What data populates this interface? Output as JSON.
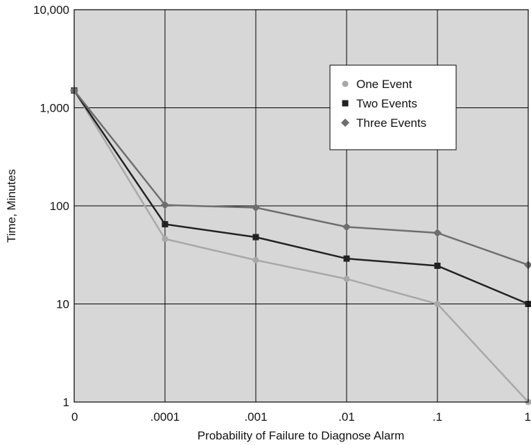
{
  "chart_data": {
    "type": "line",
    "title": "",
    "xlabel": "Probability of Failure to Diagnose Alarm",
    "ylabel": "Time, Minutes",
    "x_scale": "categorical",
    "y_scale": "log",
    "ylim": [
      1,
      10000
    ],
    "categories": [
      "0",
      ".0001",
      ".001",
      ".01",
      ".1",
      "1"
    ],
    "y_ticks": [
      1,
      10,
      100,
      1000,
      10000
    ],
    "y_tick_labels": [
      "1",
      "10",
      "100",
      "1,000",
      "10,000"
    ],
    "grid": true,
    "legend_position": "top-right",
    "series": [
      {
        "name": "One Event",
        "marker": "circle",
        "color": "#a8a8a8",
        "values": [
          1500,
          46,
          28,
          18,
          10,
          1
        ]
      },
      {
        "name": "Two Events",
        "marker": "square",
        "color": "#222222",
        "values": [
          1500,
          65,
          48,
          29,
          24.5,
          10
        ]
      },
      {
        "name": "Three Events",
        "marker": "diamond",
        "color": "#6e6e6e",
        "values": [
          1500,
          102,
          96,
          61,
          53,
          25
        ]
      }
    ]
  }
}
